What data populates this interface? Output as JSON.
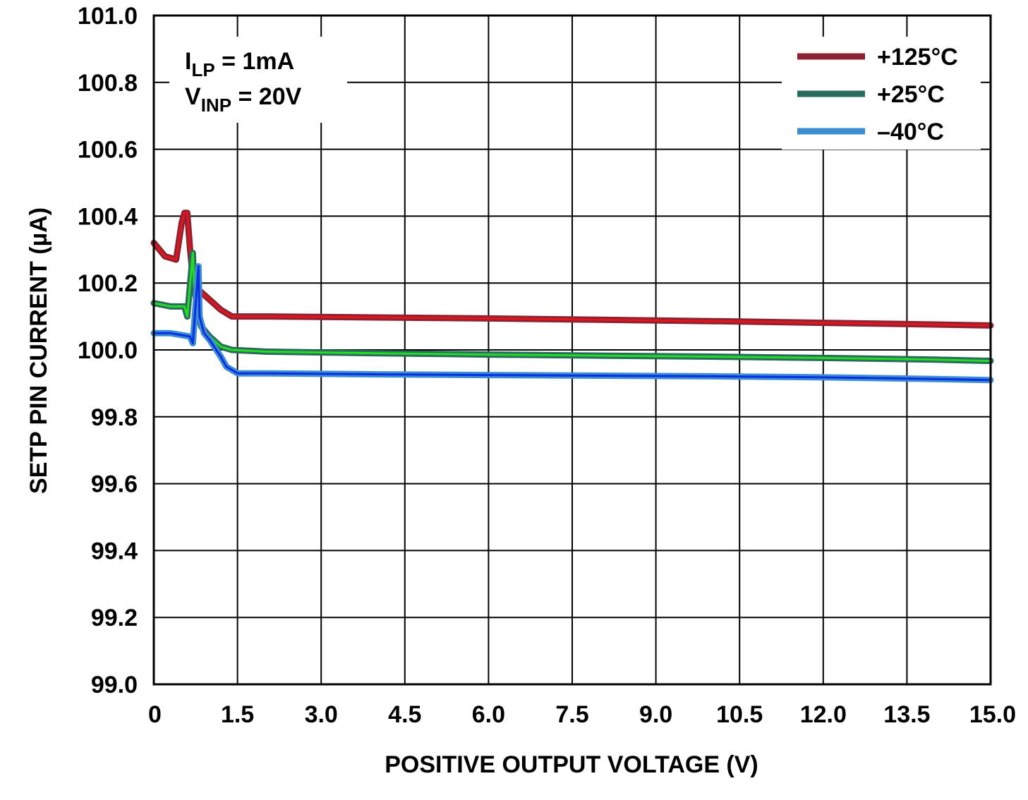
{
  "chart_data": {
    "type": "line",
    "xlabel": "POSITIVE OUTPUT VOLTAGE (V)",
    "ylabel": "SETP PIN CURRENT (µA)",
    "xlim": [
      0,
      15
    ],
    "ylim": [
      99.0,
      101.0
    ],
    "x_ticks": [
      "0",
      "1.5",
      "3.0",
      "4.5",
      "6.0",
      "7.5",
      "9.0",
      "10.5",
      "12.0",
      "13.5",
      "15.0"
    ],
    "x_tick_values": [
      0,
      1.5,
      3,
      4.5,
      6,
      7.5,
      9,
      10.5,
      12,
      13.5,
      15
    ],
    "y_ticks": [
      "99.0",
      "99.2",
      "99.4",
      "99.6",
      "99.8",
      "100.0",
      "100.2",
      "100.4",
      "100.6",
      "100.8",
      "101.0"
    ],
    "y_tick_values": [
      99.0,
      99.2,
      99.4,
      99.6,
      99.8,
      100.0,
      100.2,
      100.4,
      100.6,
      100.8,
      101.0
    ],
    "grid": true,
    "legend_position": "top-right",
    "annotations": [
      {
        "main": "I",
        "sub": "LP",
        "rest": " = 1mA"
      },
      {
        "main": "V",
        "sub": "INP",
        "rest": " = 20V"
      }
    ],
    "series": [
      {
        "name": "+125°C",
        "color": "#8b2332",
        "overlay_color": "#e8141c",
        "x": [
          0,
          0.2,
          0.4,
          0.5,
          0.55,
          0.6,
          0.65,
          0.7,
          0.8,
          1.0,
          1.2,
          1.4,
          2,
          4,
          6,
          8,
          10,
          12,
          14,
          15
        ],
        "values": [
          100.32,
          100.28,
          100.27,
          100.38,
          100.41,
          100.41,
          100.3,
          100.22,
          100.18,
          100.15,
          100.12,
          100.1,
          100.1,
          100.097,
          100.094,
          100.09,
          100.086,
          100.081,
          100.076,
          100.073
        ]
      },
      {
        "name": "+25°C",
        "color": "#2a6b5e",
        "overlay_color": "#22dd22",
        "x": [
          0,
          0.3,
          0.55,
          0.6,
          0.7,
          0.72,
          0.78,
          0.85,
          1.0,
          1.2,
          1.4,
          2,
          4,
          6,
          8,
          10,
          12,
          14,
          15
        ],
        "values": [
          100.14,
          100.13,
          100.13,
          100.1,
          100.29,
          100.2,
          100.12,
          100.07,
          100.04,
          100.01,
          100.0,
          99.995,
          99.99,
          99.986,
          99.983,
          99.98,
          99.976,
          99.971,
          99.967
        ]
      },
      {
        "name": "–40°C",
        "color": "#3b8fd0",
        "overlay_color": "#0a2ee8",
        "x": [
          0,
          0.3,
          0.65,
          0.7,
          0.8,
          0.82,
          0.9,
          1.0,
          1.2,
          1.3,
          1.5,
          2,
          4,
          6,
          8,
          10,
          12,
          14,
          15
        ],
        "values": [
          100.05,
          100.05,
          100.04,
          100.02,
          100.25,
          100.1,
          100.05,
          100.03,
          99.98,
          99.95,
          99.93,
          99.93,
          99.927,
          99.925,
          99.923,
          99.921,
          99.918,
          99.913,
          99.91
        ]
      }
    ]
  }
}
